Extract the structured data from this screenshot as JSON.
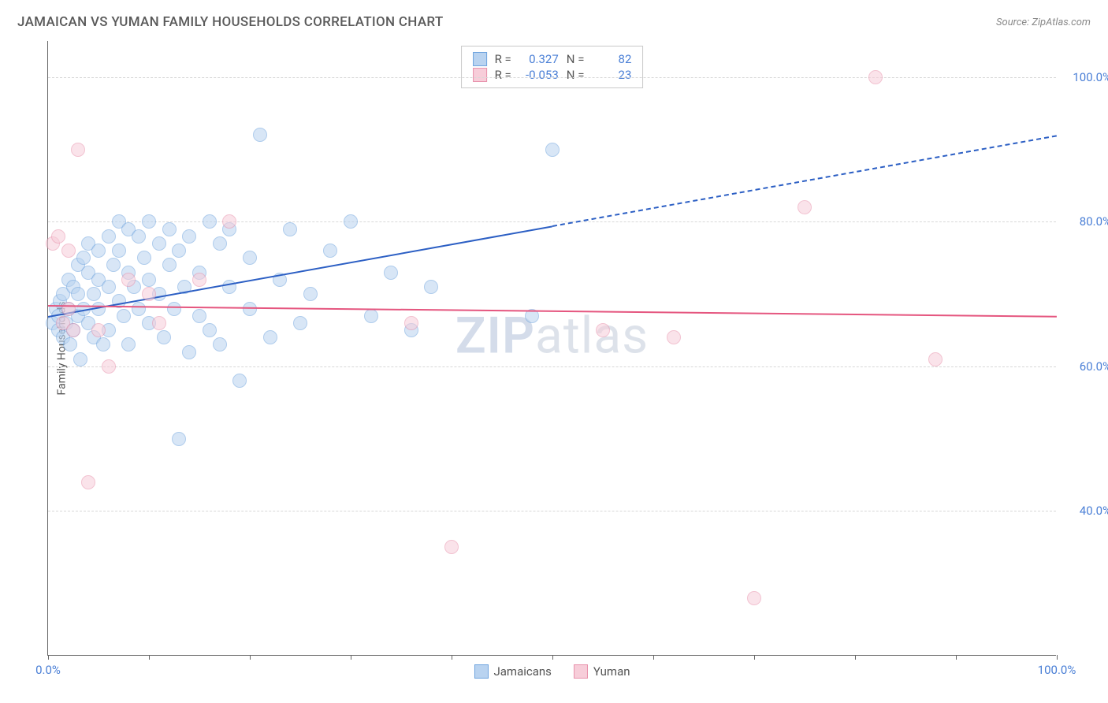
{
  "title": "JAMAICAN VS YUMAN FAMILY HOUSEHOLDS CORRELATION CHART",
  "source": "Source: ZipAtlas.com",
  "watermark_zip": "ZIP",
  "watermark_atlas": "atlas",
  "y_axis_label": "Family Households",
  "chart": {
    "type": "scatter",
    "background_color": "#ffffff",
    "grid_color": "#d8d8d8",
    "axis_color": "#666666",
    "xlim": [
      0,
      100
    ],
    "ylim": [
      20,
      105
    ],
    "x_ticks": [
      0,
      10,
      20,
      30,
      40,
      50,
      60,
      70,
      80,
      90,
      100
    ],
    "x_tick_labels": {
      "0": "0.0%",
      "100": "100.0%"
    },
    "y_ticks": [
      40,
      60,
      80,
      100
    ],
    "y_tick_labels": {
      "40": "40.0%",
      "60": "60.0%",
      "80": "80.0%",
      "100": "100.0%"
    },
    "title_fontsize": 17,
    "label_fontsize": 14,
    "tick_fontsize": 15,
    "tick_label_color": "#4a7fd6",
    "series": [
      {
        "name": "Jamaicans",
        "label": "Jamaicans",
        "fill_color": "#b9d3f0",
        "stroke_color": "#6fa4de",
        "fill_opacity": 0.55,
        "marker_radius": 9,
        "R": "0.327",
        "N": "82",
        "trend": {
          "color": "#2c5fc4",
          "width": 2,
          "solid": {
            "x1": 0,
            "y1": 67,
            "x2": 50,
            "y2": 79.5
          },
          "dashed": {
            "x1": 50,
            "y1": 79.5,
            "x2": 100,
            "y2": 92
          }
        },
        "points": [
          [
            0.5,
            66
          ],
          [
            0.8,
            68
          ],
          [
            1,
            65
          ],
          [
            1,
            67
          ],
          [
            1.2,
            69
          ],
          [
            1.5,
            64
          ],
          [
            1.5,
            70
          ],
          [
            1.8,
            66
          ],
          [
            2,
            68
          ],
          [
            2,
            72
          ],
          [
            2.2,
            63
          ],
          [
            2.5,
            71
          ],
          [
            2.5,
            65
          ],
          [
            3,
            74
          ],
          [
            3,
            67
          ],
          [
            3,
            70
          ],
          [
            3.2,
            61
          ],
          [
            3.5,
            75
          ],
          [
            3.5,
            68
          ],
          [
            4,
            73
          ],
          [
            4,
            66
          ],
          [
            4,
            77
          ],
          [
            4.5,
            70
          ],
          [
            4.5,
            64
          ],
          [
            5,
            76
          ],
          [
            5,
            72
          ],
          [
            5,
            68
          ],
          [
            5.5,
            63
          ],
          [
            6,
            78
          ],
          [
            6,
            71
          ],
          [
            6,
            65
          ],
          [
            6.5,
            74
          ],
          [
            7,
            80
          ],
          [
            7,
            69
          ],
          [
            7,
            76
          ],
          [
            7.5,
            67
          ],
          [
            8,
            73
          ],
          [
            8,
            79
          ],
          [
            8,
            63
          ],
          [
            8.5,
            71
          ],
          [
            9,
            78
          ],
          [
            9,
            68
          ],
          [
            9.5,
            75
          ],
          [
            10,
            80
          ],
          [
            10,
            66
          ],
          [
            10,
            72
          ],
          [
            11,
            77
          ],
          [
            11,
            70
          ],
          [
            11.5,
            64
          ],
          [
            12,
            79
          ],
          [
            12,
            74
          ],
          [
            12.5,
            68
          ],
          [
            13,
            76
          ],
          [
            13,
            50
          ],
          [
            13.5,
            71
          ],
          [
            14,
            62
          ],
          [
            14,
            78
          ],
          [
            15,
            67
          ],
          [
            15,
            73
          ],
          [
            16,
            80
          ],
          [
            16,
            65
          ],
          [
            17,
            77
          ],
          [
            17,
            63
          ],
          [
            18,
            71
          ],
          [
            18,
            79
          ],
          [
            19,
            58
          ],
          [
            20,
            68
          ],
          [
            20,
            75
          ],
          [
            21,
            92
          ],
          [
            22,
            64
          ],
          [
            23,
            72
          ],
          [
            24,
            79
          ],
          [
            25,
            66
          ],
          [
            26,
            70
          ],
          [
            28,
            76
          ],
          [
            30,
            80
          ],
          [
            32,
            67
          ],
          [
            34,
            73
          ],
          [
            36,
            65
          ],
          [
            38,
            71
          ],
          [
            48,
            67
          ],
          [
            50,
            90
          ]
        ]
      },
      {
        "name": "Yuman",
        "label": "Yuman",
        "fill_color": "#f7cdd9",
        "stroke_color": "#e892ac",
        "fill_opacity": 0.55,
        "marker_radius": 9,
        "R": "-0.053",
        "N": "23",
        "trend": {
          "color": "#e5567f",
          "width": 2,
          "solid": {
            "x1": 0,
            "y1": 68.5,
            "x2": 100,
            "y2": 67
          }
        },
        "points": [
          [
            0.5,
            77
          ],
          [
            1,
            78
          ],
          [
            1.5,
            66
          ],
          [
            2,
            76
          ],
          [
            2,
            68
          ],
          [
            2.5,
            65
          ],
          [
            3,
            90
          ],
          [
            4,
            44
          ],
          [
            5,
            65
          ],
          [
            6,
            60
          ],
          [
            8,
            72
          ],
          [
            10,
            70
          ],
          [
            11,
            66
          ],
          [
            15,
            72
          ],
          [
            18,
            80
          ],
          [
            36,
            66
          ],
          [
            40,
            35
          ],
          [
            55,
            65
          ],
          [
            62,
            64
          ],
          [
            70,
            28
          ],
          [
            75,
            82
          ],
          [
            82,
            100
          ],
          [
            88,
            61
          ]
        ]
      }
    ]
  },
  "legend": {
    "R_label": "R =",
    "N_label": "N ="
  }
}
